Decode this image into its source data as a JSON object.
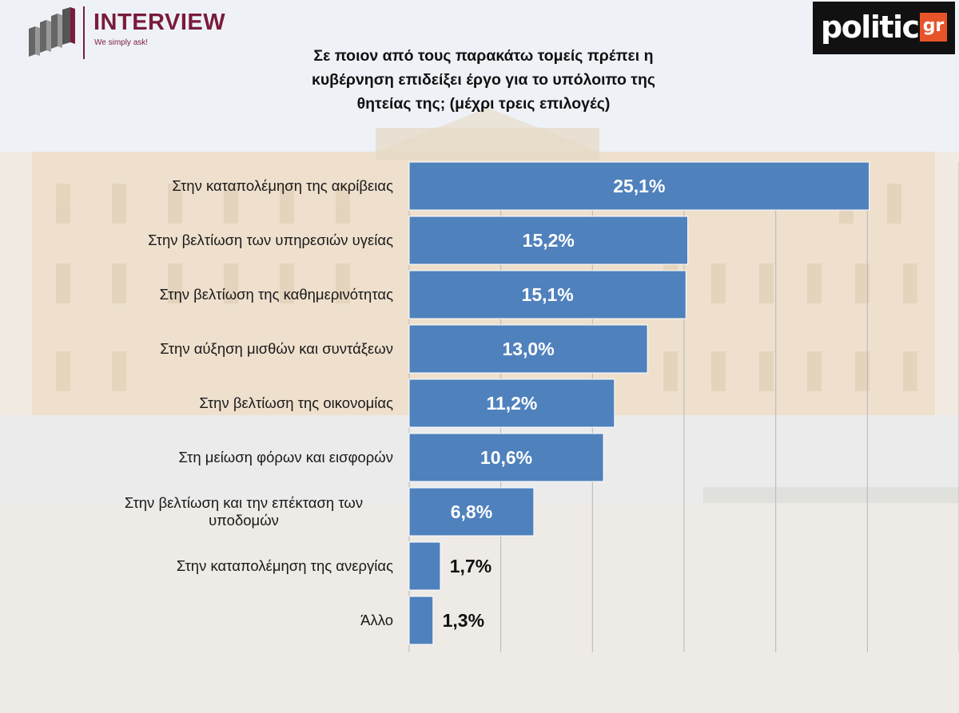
{
  "brand": {
    "interview_name": "INTERVIEW",
    "interview_slogan": "We simply ask!",
    "politic_word": "politic",
    "politic_suffix": "gr"
  },
  "colors": {
    "bar": "#4f81bd",
    "bar_border": "#ffffff",
    "label_inside": "#ffffff",
    "label_outside": "#111111",
    "grid": "#b8b8b8",
    "interview_brand": "#7a1b3c",
    "politic_accent": "#e8542a"
  },
  "chart_data": {
    "type": "bar",
    "orientation": "horizontal",
    "title": "Σε ποιον από τους παρακάτω τομείς πρέπει η κυβέρνηση επιδείξει έργο για το υπόλοιπο της θητείας της; (μέχρι τρεις επιλογές)",
    "title_lines": [
      "Σε ποιον από τους παρακάτω τομείς πρέπει η",
      "κυβέρνηση επιδείξει έργο για το υπόλοιπο της",
      "θητείας της; (μέχρι τρεις επιλογές)"
    ],
    "categories": [
      [
        "Στην καταπολέμηση της ακρίβειας"
      ],
      [
        "Στην βελτίωση των υπηρεσιών υγείας"
      ],
      [
        "Στην βελτίωση της καθημερινότητας"
      ],
      [
        "Στην αύξηση μισθών και συντάξεων"
      ],
      [
        "Στην βελτίωση της οικονομίας"
      ],
      [
        "Στη μείωση φόρων και εισφορών"
      ],
      [
        "Στην βελτίωση και την επέκταση των",
        "υποδομών"
      ],
      [
        "Στην καταπολέμηση της ανεργίας"
      ],
      [
        "Άλλο"
      ]
    ],
    "values": [
      25.1,
      15.2,
      15.1,
      13.0,
      11.2,
      10.6,
      6.8,
      1.7,
      1.3
    ],
    "value_labels": [
      "25,1%",
      "15,2%",
      "15,1%",
      "13,0%",
      "11,2%",
      "10,6%",
      "6,8%",
      "1,7%",
      "1,3%"
    ],
    "xlim": [
      0,
      30
    ],
    "grid": true,
    "legend": "none"
  }
}
